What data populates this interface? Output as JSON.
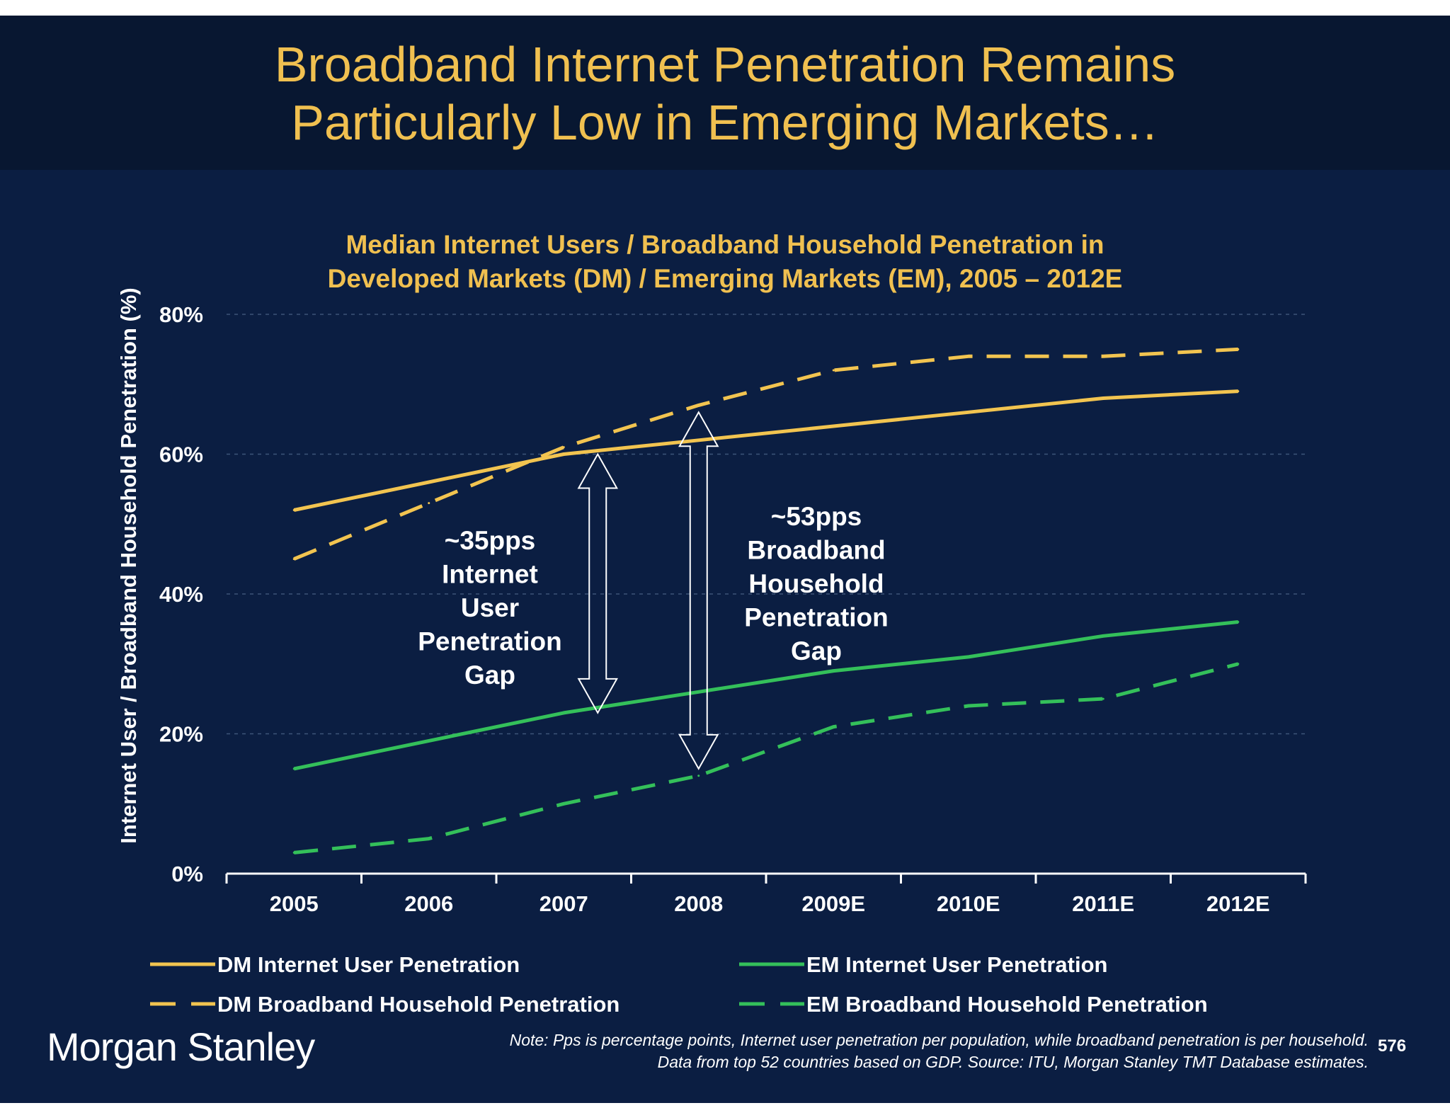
{
  "slide": {
    "title_lines": [
      "Broadband Internet Penetration Remains",
      "Particularly Low in Emerging Markets…"
    ],
    "note_lines": [
      "Note: Pps is percentage points, Internet user penetration per population, while broadband penetration is per household.",
      "Data from top 52 countries based on GDP. Source: ITU, Morgan Stanley TMT Database estimates."
    ],
    "page_number": "576",
    "brand": "Morgan Stanley"
  },
  "colors": {
    "background": "#0b1e42",
    "header": "#081731",
    "title": "#f0c050",
    "dm": "#f2c450",
    "em": "#34c05a",
    "axis": "#ffffff",
    "grid": "#3d5478"
  },
  "chart_data": {
    "type": "line",
    "title_lines": [
      "Median Internet Users / Broadband Household Penetration in",
      "Developed Markets (DM) / Emerging Markets (EM), 2005 – 2012E"
    ],
    "xlabel": "",
    "ylabel": "Internet User / Broadband Household Penetration (%)",
    "categories": [
      "2005",
      "2006",
      "2007",
      "2008",
      "2009E",
      "2010E",
      "2011E",
      "2012E"
    ],
    "ylim": [
      0,
      80
    ],
    "yticks": [
      0,
      20,
      40,
      60,
      80
    ],
    "ytick_labels": [
      "0%",
      "20%",
      "40%",
      "60%",
      "80%"
    ],
    "grid": true,
    "legend_position": "bottom",
    "series": [
      {
        "name": "DM Internet User Penetration",
        "color": "#f2c450",
        "style": "solid",
        "values": [
          52,
          56,
          60,
          62,
          64,
          66,
          68,
          69
        ]
      },
      {
        "name": "DM Broadband Household Penetration",
        "color": "#f2c450",
        "style": "dashed",
        "values": [
          45,
          53,
          61,
          67,
          72,
          74,
          74,
          75
        ]
      },
      {
        "name": "EM Internet User Penetration",
        "color": "#34c05a",
        "style": "solid",
        "values": [
          15,
          19,
          23,
          26,
          29,
          31,
          34,
          36
        ]
      },
      {
        "name": "EM Broadband Household Penetration",
        "color": "#34c05a",
        "style": "dashed",
        "values": [
          3,
          5,
          10,
          14,
          21,
          24,
          25,
          30
        ]
      }
    ],
    "annotations": [
      {
        "lines": [
          "~35pps",
          "Internet",
          "User",
          "Penetration",
          "Gap"
        ],
        "from": 23,
        "to": 60
      },
      {
        "lines": [
          "~53pps",
          "Broadband",
          "Household",
          "Penetration",
          "Gap"
        ],
        "from": 15,
        "to": 66
      }
    ]
  }
}
